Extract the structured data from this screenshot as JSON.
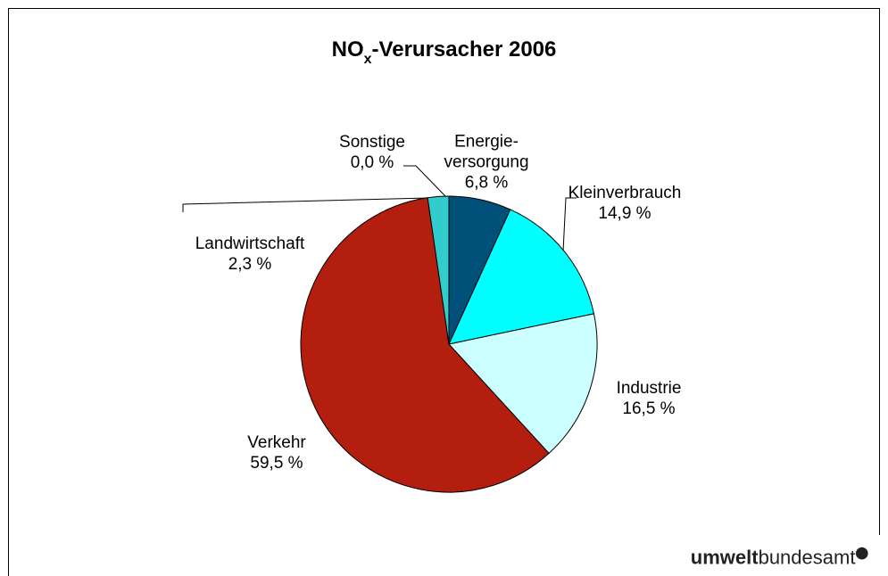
{
  "chart_data": {
    "type": "pie",
    "title": [
      "NO",
      "x",
      "-Verursacher 2006"
    ],
    "categories": [
      "Energie-\nversorgung",
      "Kleinverbrauch",
      "Industrie",
      "Verkehr",
      "Landwirtschaft",
      "Sonstige"
    ],
    "values": [
      6.8,
      14.9,
      16.5,
      59.5,
      2.3,
      0.0
    ],
    "value_labels": [
      "6,8 %",
      "14,9 %",
      "16,5 %",
      "59,5 %",
      "2,3 %",
      "0,0 %"
    ],
    "colors": [
      "#00507a",
      "#00ffff",
      "#ccffff",
      "#b41e0e",
      "#33cccc",
      "#9999ff"
    ]
  },
  "logo": [
    "umwelt",
    "bundesamt"
  ]
}
